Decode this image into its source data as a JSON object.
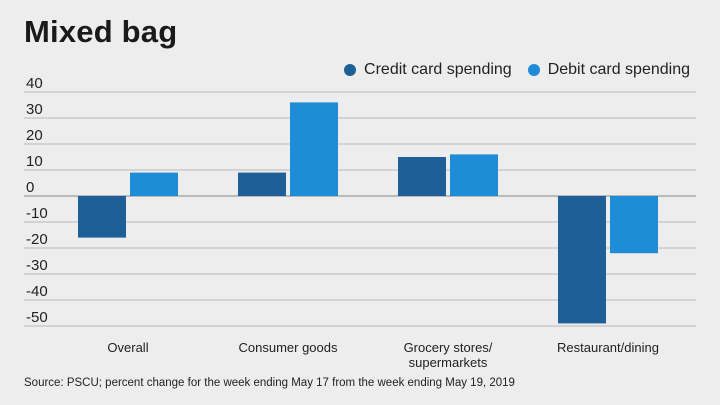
{
  "chart_data": {
    "type": "bar",
    "title": "Mixed bag",
    "categories": [
      "Overall",
      "Consumer goods",
      "Grocery stores/\nsupermarkets",
      "Restaurant/dining"
    ],
    "series": [
      {
        "name": "Credit card spending",
        "color": "#1d5f96",
        "values": [
          -16,
          9,
          15,
          -49
        ]
      },
      {
        "name": "Debit card spending",
        "color": "#1e8cd6",
        "values": [
          9,
          36,
          16,
          -22
        ]
      }
    ],
    "yticks": [
      40,
      30,
      20,
      10,
      0,
      -10,
      -20,
      -30,
      -40,
      -50
    ],
    "ylim": [
      -50,
      40
    ],
    "legend_position": "top-right",
    "source": "Source: PSCU; percent change for the week ending May 17 from the week ending May 19, 2019"
  }
}
